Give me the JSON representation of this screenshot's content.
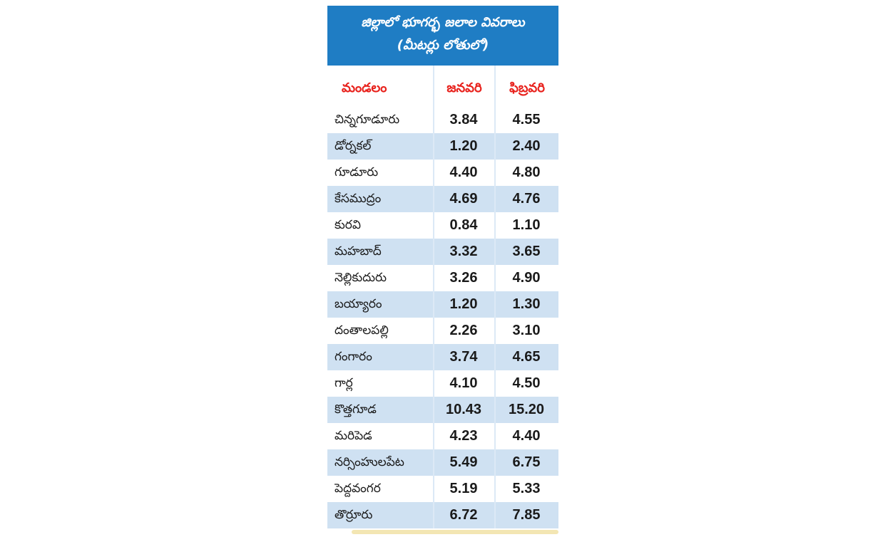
{
  "banner": {
    "title_line1": "జిల్లాలో భూగర్భ జలాల వివరాలు",
    "title_line2": "(మీటర్లు లోతులో)"
  },
  "table": {
    "headers": [
      "మండలం",
      "జనవరి",
      "ఫిబ్రవరి"
    ],
    "rows": [
      [
        "చిన్నగూడూరు",
        "3.84",
        "4.55"
      ],
      [
        "డోర్నకల్",
        "1.20",
        "2.40"
      ],
      [
        "గూడూరు",
        "4.40",
        "4.80"
      ],
      [
        "కేసముద్రం",
        "4.69",
        "4.76"
      ],
      [
        "కురవి",
        "0.84",
        "1.10"
      ],
      [
        "మహబాద్",
        "3.32",
        "3.65"
      ],
      [
        "నెల్లికుదురు",
        "3.26",
        "4.90"
      ],
      [
        "బయ్యారం",
        "1.20",
        "1.30"
      ],
      [
        "దంతాలపల్లి",
        "2.26",
        "3.10"
      ],
      [
        "గంగారం",
        "3.74",
        "4.65"
      ],
      [
        "గార్ల",
        "4.10",
        "4.50"
      ],
      [
        "కొత్తగూడ",
        "10.43",
        "15.20"
      ],
      [
        "మరిపెడ",
        "4.23",
        "4.40"
      ],
      [
        "నర్సింహులపేట",
        "5.49",
        "6.75"
      ],
      [
        "పెద్దవంగర",
        "5.19",
        "5.33"
      ],
      [
        "తొర్రూరు",
        "6.72",
        "7.85"
      ]
    ]
  },
  "colors": {
    "banner_bg": "#1f7dc4",
    "header_text": "#e8211c",
    "alt_row_bg": "#cfe1f2"
  }
}
